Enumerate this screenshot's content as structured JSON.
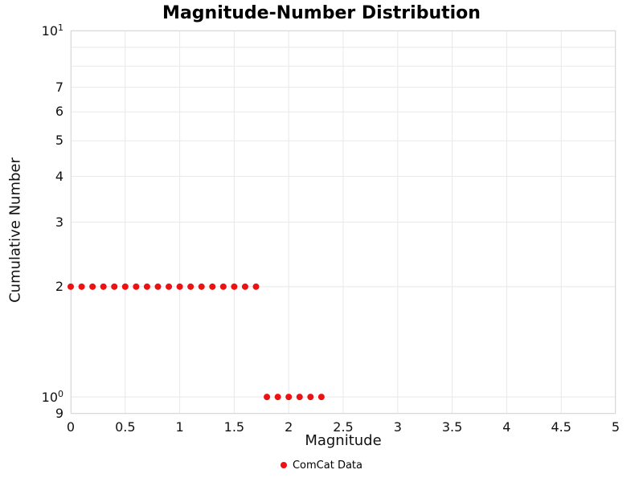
{
  "chart_data": {
    "type": "scatter",
    "title": "Magnitude-Number Distribution",
    "xlabel": "Magnitude",
    "ylabel": "Cumulative Number",
    "xlim": [
      0,
      5
    ],
    "ylim": [
      0.9,
      10
    ],
    "yscale": "log",
    "grid": true,
    "legend_position": "bottom-center",
    "x_ticks": [
      {
        "v": 0,
        "label": "0"
      },
      {
        "v": 0.5,
        "label": "0.5"
      },
      {
        "v": 1,
        "label": "1"
      },
      {
        "v": 1.5,
        "label": "1.5"
      },
      {
        "v": 2,
        "label": "2"
      },
      {
        "v": 2.5,
        "label": "2.5"
      },
      {
        "v": 3,
        "label": "3"
      },
      {
        "v": 3.5,
        "label": "3.5"
      },
      {
        "v": 4,
        "label": "4"
      },
      {
        "v": 4.5,
        "label": "4.5"
      },
      {
        "v": 5,
        "label": "5"
      }
    ],
    "y_ticks": [
      {
        "v": 10,
        "label": "10^1"
      },
      {
        "v": 7,
        "label": "7"
      },
      {
        "v": 6,
        "label": "6"
      },
      {
        "v": 5,
        "label": "5"
      },
      {
        "v": 4,
        "label": "4"
      },
      {
        "v": 3,
        "label": "3"
      },
      {
        "v": 2,
        "label": "2"
      },
      {
        "v": 1,
        "label": "10^0"
      },
      {
        "v": 0.9,
        "label": "9"
      }
    ],
    "y_gridlines": [
      10,
      9,
      8,
      7,
      6,
      5,
      4,
      3,
      2,
      1,
      0.9
    ],
    "series": [
      {
        "name": "ComCat Data",
        "color": "#ee1111",
        "marker": "circle",
        "points": [
          {
            "x": 0.0,
            "y": 2
          },
          {
            "x": 0.1,
            "y": 2
          },
          {
            "x": 0.2,
            "y": 2
          },
          {
            "x": 0.3,
            "y": 2
          },
          {
            "x": 0.4,
            "y": 2
          },
          {
            "x": 0.5,
            "y": 2
          },
          {
            "x": 0.6,
            "y": 2
          },
          {
            "x": 0.7,
            "y": 2
          },
          {
            "x": 0.8,
            "y": 2
          },
          {
            "x": 0.9,
            "y": 2
          },
          {
            "x": 1.0,
            "y": 2
          },
          {
            "x": 1.1,
            "y": 2
          },
          {
            "x": 1.2,
            "y": 2
          },
          {
            "x": 1.3,
            "y": 2
          },
          {
            "x": 1.4,
            "y": 2
          },
          {
            "x": 1.5,
            "y": 2
          },
          {
            "x": 1.6,
            "y": 2
          },
          {
            "x": 1.7,
            "y": 2
          },
          {
            "x": 1.8,
            "y": 1
          },
          {
            "x": 1.9,
            "y": 1
          },
          {
            "x": 2.0,
            "y": 1
          },
          {
            "x": 2.1,
            "y": 1
          },
          {
            "x": 2.2,
            "y": 1
          },
          {
            "x": 2.3,
            "y": 1
          }
        ]
      }
    ]
  }
}
